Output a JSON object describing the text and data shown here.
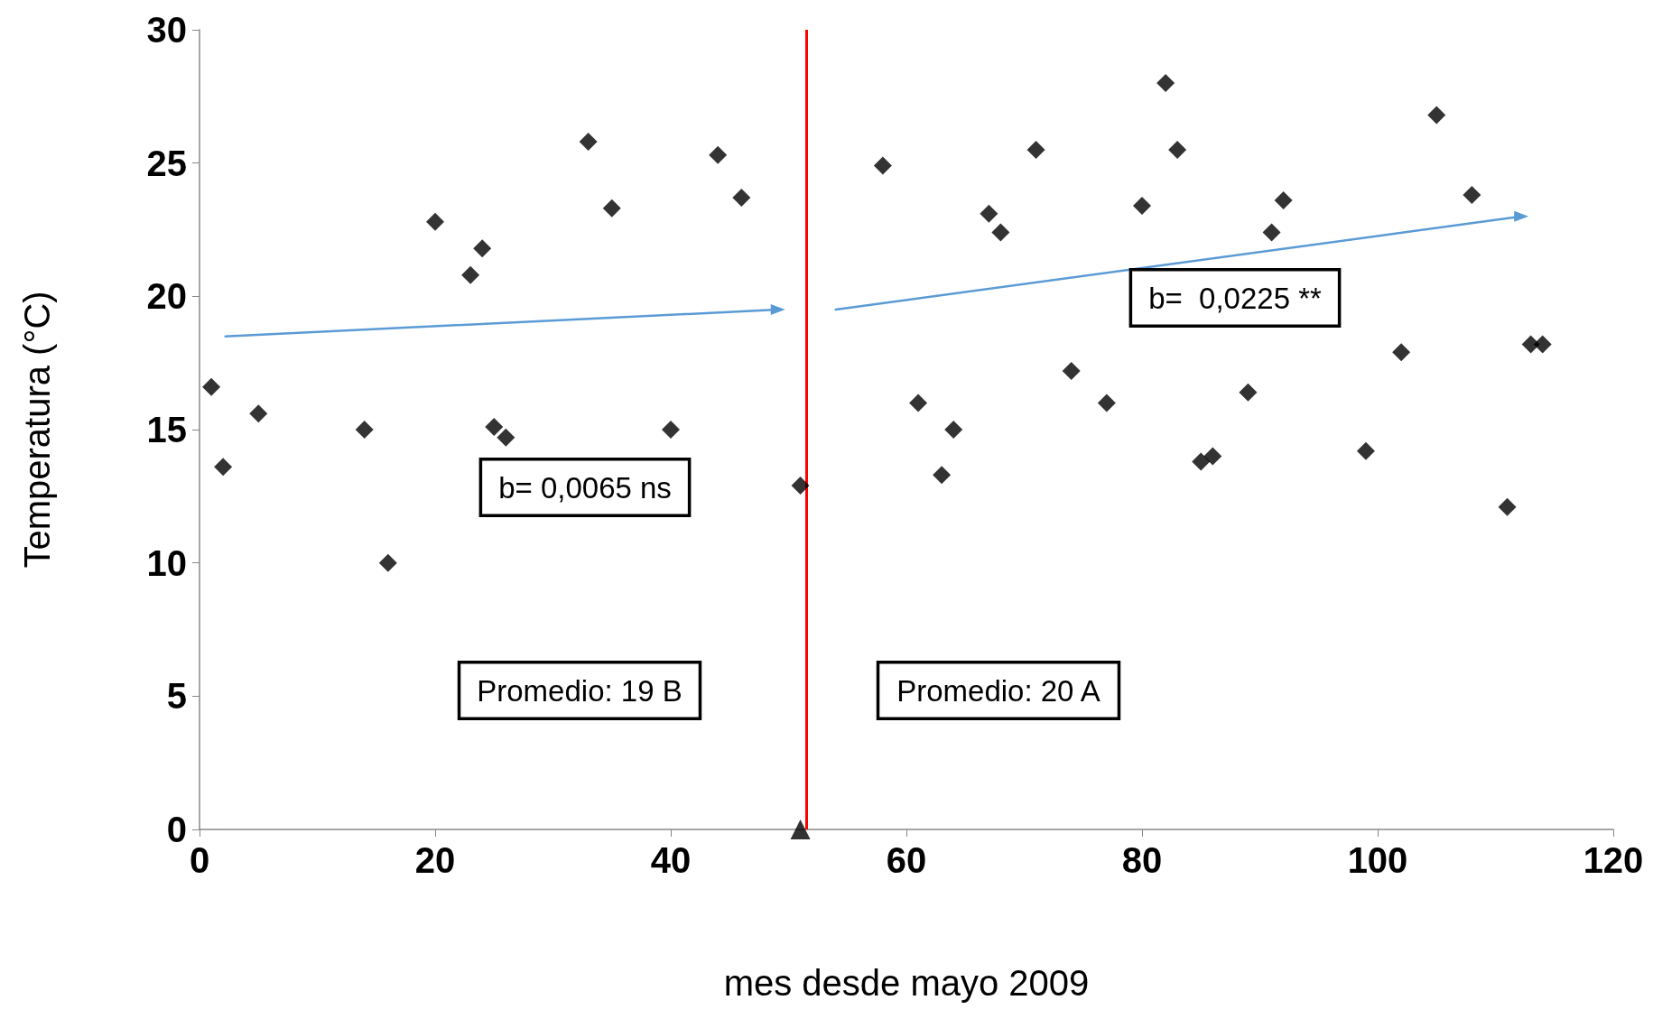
{
  "chart_data": {
    "type": "scatter",
    "xlabel": "mes desde mayo 2009",
    "ylabel": "Temperatura (°C)",
    "xlim": [
      0,
      120
    ],
    "xticks": [
      0,
      20,
      40,
      60,
      80,
      100,
      120
    ],
    "ylim": [
      0,
      30
    ],
    "yticks": [
      0,
      5,
      10,
      15,
      20,
      25,
      30
    ],
    "grid": false,
    "series": [
      {
        "marker": "diamond",
        "color": "#000000",
        "x": [
          1,
          2,
          5,
          14,
          16,
          20,
          23,
          24,
          25,
          26,
          33,
          35,
          40,
          44,
          46,
          51,
          58,
          61,
          63,
          64,
          67,
          68,
          71,
          74,
          77,
          80,
          82,
          83,
          85,
          86,
          89,
          91,
          92,
          99,
          102,
          105,
          108,
          111,
          113,
          114
        ],
        "values": [
          16.6,
          13.6,
          15.6,
          15.0,
          10.0,
          22.8,
          20.8,
          21.8,
          15.1,
          14.7,
          25.8,
          23.3,
          15.0,
          25.3,
          23.7,
          12.9,
          24.9,
          16.0,
          13.3,
          15.0,
          23.1,
          22.4,
          25.5,
          17.2,
          16.0,
          23.4,
          28.0,
          25.5,
          13.8,
          14.0,
          16.4,
          22.4,
          23.6,
          14.2,
          17.9,
          26.8,
          23.8,
          12.1,
          18.2,
          18.2
        ]
      },
      {
        "type": "scatter",
        "marker": "triangle",
        "color": "#000000",
        "x": [
          51
        ],
        "values": [
          0
        ]
      },
      {
        "type": "line",
        "color": "#5b9bd5",
        "x": [
          2.2,
          49.1
        ],
        "values": [
          18.5,
          19.5
        ]
      },
      {
        "type": "line",
        "color": "#5b9bd5",
        "x": [
          54,
          112.2
        ],
        "values": [
          19.5,
          23.0
        ]
      }
    ],
    "ref_lines": [
      {
        "axis": "x",
        "value": 51.5,
        "color": "#ff0000"
      }
    ],
    "annotations": [
      "b= 0,0065 ns",
      "b=  0,0225 **",
      "Promedio: 19 B",
      "Promedio: 20 A"
    ]
  }
}
